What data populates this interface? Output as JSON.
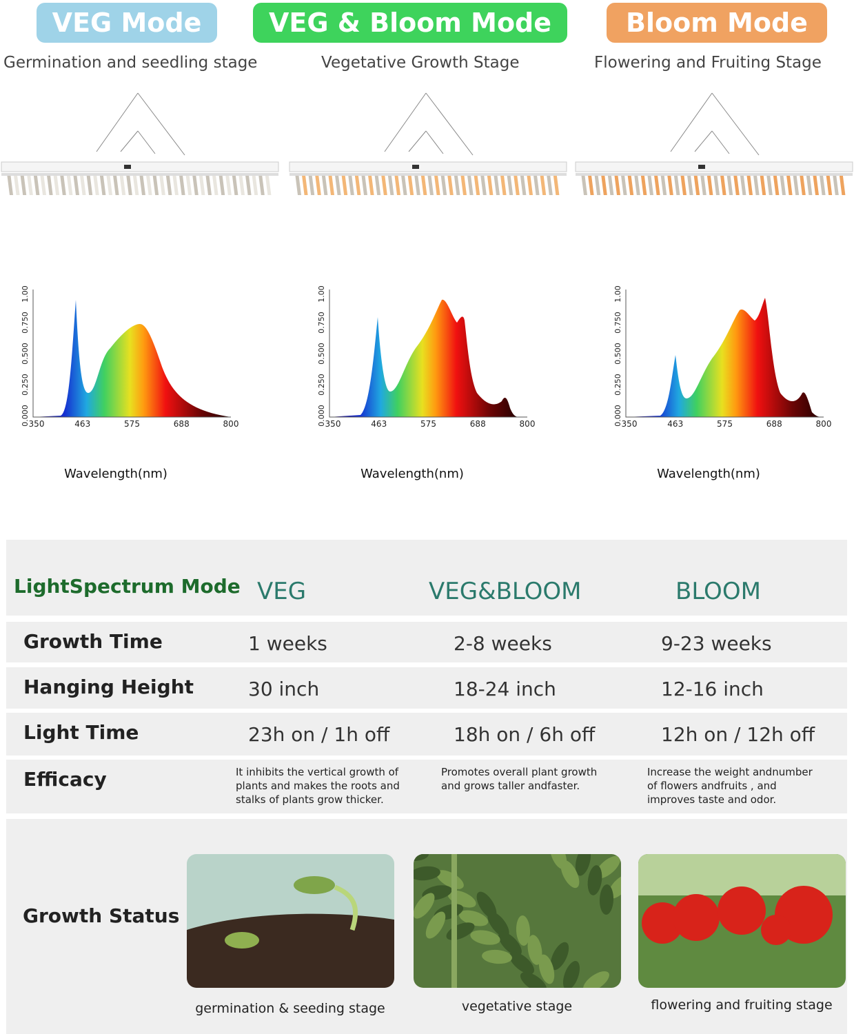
{
  "modes": [
    {
      "badge": "VEG Mode",
      "subtitle": "Germination and seedling stage",
      "spectrum": {
        "yticks": [
          "0.000",
          "0.250",
          "0.500",
          "0.750",
          "1.000"
        ],
        "xticks": [
          "350",
          "463",
          "575",
          "688",
          "800"
        ],
        "xlabel": "Wavelength(nm)"
      }
    },
    {
      "badge": "VEG & Bloom Mode",
      "subtitle": "Vegetative Growth Stage",
      "spectrum": {
        "yticks": [
          "0.000",
          "0.250",
          "0.500",
          "0.750",
          "1.000"
        ],
        "xticks": [
          "350",
          "463",
          "575",
          "688",
          "800"
        ],
        "xlabel": "Wavelength(nm)"
      }
    },
    {
      "badge": "Bloom Mode",
      "subtitle": "Flowering and Fruiting Stage",
      "spectrum": {
        "yticks": [
          "0.000",
          "0.250",
          "0.500",
          "0.750",
          "1.000"
        ],
        "xticks": [
          "350",
          "463",
          "575",
          "688",
          "800"
        ],
        "xlabel": "Wavelength(nm)"
      }
    }
  ],
  "table": {
    "header": [
      "LightSpectrum Mode",
      "VEG",
      "VEG&BLOOM",
      "BLOOM"
    ],
    "rows": [
      [
        "Growth Time",
        "1 weeks",
        "2-8 weeks",
        "9-23 weeks"
      ],
      [
        "Hanging Height",
        "30 inch",
        "18-24 inch",
        "12-16 inch"
      ],
      [
        "Light Time",
        "23h on / 1h off",
        "18h on / 6h off",
        "12h on / 12h off"
      ],
      [
        "Efficacy",
        "It inhibits the vertical growth of plants and makes the roots and stalks of plants grow thicker.",
        "Promotes overall plant growth and grows taller andfaster.",
        "Increase the weight andnumber of flowers andfruits , and improves taste and odor."
      ]
    ],
    "status": {
      "label": "Growth Status",
      "captions": [
        "germination & seeding stage",
        "vegetative stage",
        "flowering and fruiting stage"
      ]
    }
  }
}
